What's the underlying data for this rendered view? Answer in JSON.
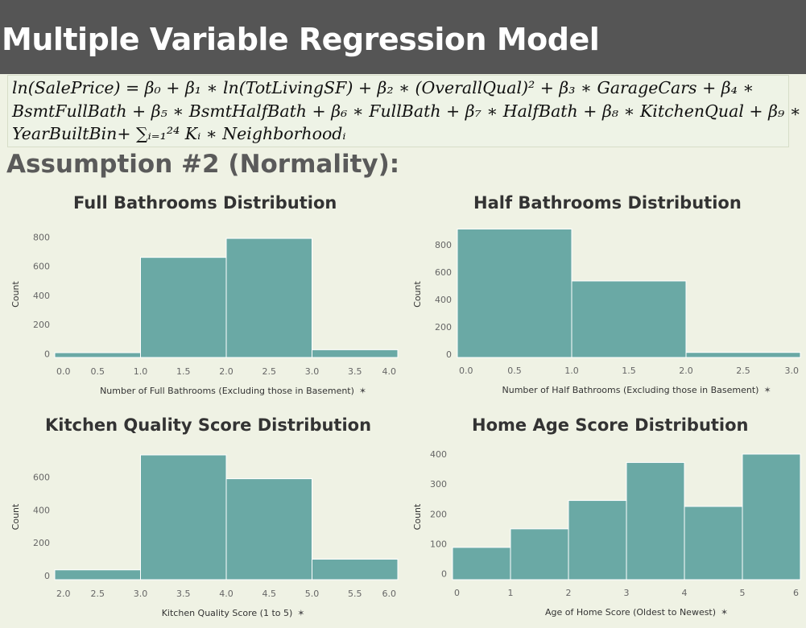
{
  "header": {
    "title": "Multiple Variable Regression Model"
  },
  "formula": {
    "line1": "ln(SalePrice) = β₀ + β₁ ∗ ln(TotLivingSF) + β₂ ∗ (OverallQual)² + β₃ ∗ GarageCars + β₄ ∗",
    "line2": "BsmtFullBath + β₅ ∗ BsmtHalfBath + β₆ ∗ FullBath + β₇ ∗ HalfBath + β₈ ∗ KitchenQual + β₉ ∗",
    "line3": "YearBuiltBin+ ∑ᵢ₌₁²⁴ Kᵢ ∗ Neighborhoodᵢ"
  },
  "section_title": "Assumption #2 (Normality):",
  "colors": {
    "bar": "#6aa9a5",
    "header_bg": "#555555",
    "page_bg": "#eff2e4"
  },
  "icons": {
    "pin": "pin-icon"
  },
  "chart_data": [
    {
      "type": "bar",
      "title": "Full Bathrooms Distribution",
      "xlabel": "Number of Full Bathrooms (Excluding those in Basement)",
      "ylabel": "Count",
      "bin_edges": [
        0,
        1,
        2,
        3,
        4
      ],
      "values": [
        8,
        660,
        790,
        28
      ],
      "xticks": [
        "0.0",
        "0.5",
        "1.0",
        "1.5",
        "2.0",
        "2.5",
        "3.0",
        "3.5",
        "4.0"
      ],
      "xlim": [
        0,
        4
      ],
      "yticks": [
        0,
        200,
        400,
        600,
        800
      ],
      "ylim": [
        -25,
        840
      ],
      "grid": false
    },
    {
      "type": "bar",
      "title": "Half Bathrooms Distribution",
      "xlabel": "Number of Half Bathrooms (Excluding those in Basement)",
      "ylabel": "Count",
      "bin_edges": [
        0,
        1,
        2,
        3
      ],
      "values": [
        915,
        535,
        12
      ],
      "xticks": [
        "0.0",
        "0.5",
        "1.0",
        "1.5",
        "2.0",
        "2.5",
        "3.0"
      ],
      "xlim": [
        0,
        3
      ],
      "yticks": [
        0,
        200,
        400,
        600,
        800
      ],
      "ylim": [
        -25,
        900
      ],
      "grid": false
    },
    {
      "type": "bar",
      "title": "Kitchen Quality Score Distribution",
      "xlabel": "Kitchen Quality Score (1 to 5)",
      "ylabel": "Count",
      "bin_edges": [
        2,
        3,
        4,
        5,
        6
      ],
      "values": [
        35,
        735,
        590,
        100
      ],
      "xticks": [
        "2.0",
        "2.5",
        "3.0",
        "3.5",
        "4.0",
        "4.5",
        "5.0",
        "5.5",
        "6.0"
      ],
      "xlim": [
        2,
        6
      ],
      "yticks": [
        0,
        200,
        400,
        600
      ],
      "ylim": [
        -25,
        740
      ],
      "grid": false
    },
    {
      "type": "bar",
      "title": "Home Age Score Distribution",
      "xlabel": "Age of Home Score (Oldest to Newest)",
      "ylabel": "Count",
      "bin_edges": [
        0,
        1,
        2,
        3,
        4,
        5,
        6
      ],
      "values": [
        88,
        150,
        245,
        372,
        225,
        400
      ],
      "xticks": [
        "0",
        "1",
        "2",
        "3",
        "4",
        "5",
        "6"
      ],
      "xlim": [
        0,
        6
      ],
      "yticks": [
        0,
        100,
        200,
        300,
        400
      ],
      "ylim": [
        -20,
        400
      ],
      "grid": false
    }
  ]
}
